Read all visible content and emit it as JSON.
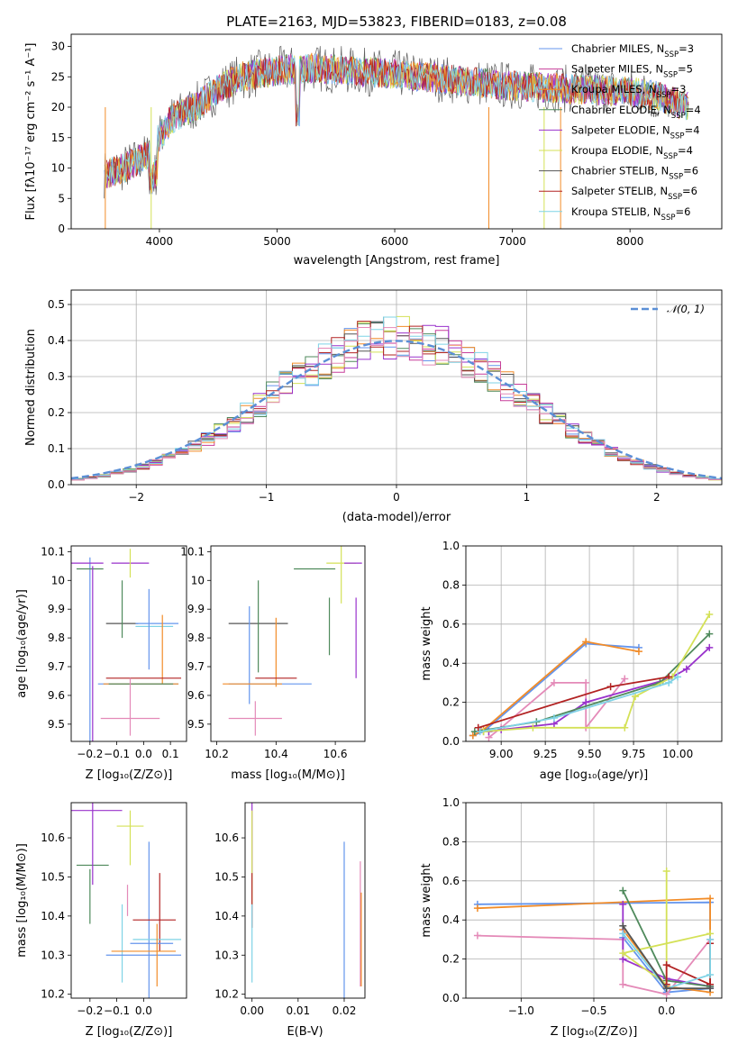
{
  "figure": {
    "title": "PLATE=2163, MJD=53823, FIBERID=0183, z=0.08"
  },
  "chart_data": [
    {
      "id": "spectrum",
      "type": "line",
      "xlabel": "wavelength [Angstrom, rest frame]",
      "ylabel": "Flux [fλ10⁻¹⁷ erg cm⁻² s⁻¹ A⁻¹]",
      "xlim": [
        3250,
        8780
      ],
      "ylim": [
        0,
        32
      ],
      "xticks": [
        4000,
        5000,
        6000,
        7000,
        8000
      ],
      "yticks": [
        0,
        5,
        10,
        15,
        20,
        25,
        30
      ],
      "continuum": {
        "x": [
          3530,
          3700,
          3900,
          4100,
          4300,
          4500,
          4700,
          5000,
          5300,
          5600,
          6000,
          6500,
          7000,
          7500,
          8000,
          8200,
          8500
        ],
        "y": [
          9,
          10,
          12,
          18,
          20,
          23,
          25,
          26,
          26.5,
          26,
          25.5,
          24.5,
          23.5,
          23,
          22.5,
          22,
          20
        ]
      },
      "legend": [
        {
          "label": "Chabrier MILES, N",
          "sub": "SSP",
          "suffix": "=3",
          "color": "#6495ed"
        },
        {
          "label": "Salpeter MILES, N",
          "sub": "SSP",
          "suffix": "=5",
          "color": "#c73e9a"
        },
        {
          "label": "Kroupa MILES, N",
          "sub": "SSP",
          "suffix": "=3",
          "color": "#f28c28"
        },
        {
          "label": "Chabrier ELODIE, N",
          "sub": "SSP",
          "suffix": "=4",
          "color": "#4f8a5c"
        },
        {
          "label": "Salpeter ELODIE, N",
          "sub": "SSP",
          "suffix": "=4",
          "color": "#9932cc"
        },
        {
          "label": "Kroupa ELODIE, N",
          "sub": "SSP",
          "suffix": "=4",
          "color": "#d4e157"
        },
        {
          "label": "Chabrier STELIB, N",
          "sub": "SSP",
          "suffix": "=6",
          "color": "#555555"
        },
        {
          "label": "Salpeter STELIB, N",
          "sub": "SSP",
          "suffix": "=6",
          "color": "#b22222"
        },
        {
          "label": "Kroupa STELIB, N",
          "sub": "SSP",
          "suffix": "=6",
          "color": "#7fd3e6"
        }
      ]
    },
    {
      "id": "residuals",
      "type": "line",
      "xlabel": "(data-model)/error",
      "ylabel": "Normed distribution",
      "xlim": [
        -2.5,
        2.5
      ],
      "ylim": [
        0,
        0.54
      ],
      "xticks": [
        -2,
        -1,
        0,
        1,
        2
      ],
      "yticks": [
        0.0,
        0.1,
        0.2,
        0.3,
        0.4,
        0.5
      ],
      "grid": true,
      "legend_label": "𝒩(0, 1)",
      "legend_placement": "top-right",
      "series_colors": [
        "#6495ed",
        "#c73e9a",
        "#f28c28",
        "#4f8a5c",
        "#9932cc",
        "#d4e157",
        "#555555",
        "#b22222",
        "#7fd3e6",
        "#e48ab8"
      ]
    },
    {
      "id": "age-vs-Z",
      "type": "scatter",
      "xlabel": "Z [log₁₀(Z/Z⊙)]",
      "ylabel": "age  [log₁₀(age/yr)]",
      "xlim": [
        -0.27,
        0.16
      ],
      "ylim": [
        9.44,
        10.12
      ],
      "xticks": [
        -0.2,
        -0.1,
        0.0,
        0.1
      ],
      "xtick_labels": [
        "−0.2",
        "−0.1",
        "0.0",
        "0.1"
      ],
      "yticks": [
        9.5,
        9.6,
        9.7,
        9.8,
        9.9,
        10.0,
        10.1
      ],
      "points": [
        {
          "x": -0.2,
          "y": 9.74,
          "xerr": 0.0,
          "yerr": 0.34,
          "color": "#6495ed"
        },
        {
          "x": -0.21,
          "y": 10.06,
          "xerr": 0.06,
          "yerr": 0.0,
          "color": "#9932cc"
        },
        {
          "x": -0.2,
          "y": 10.04,
          "xerr": 0.05,
          "yerr": 0.0,
          "color": "#4f8a5c"
        },
        {
          "x": -0.19,
          "y": 9.67,
          "xerr": 0.0,
          "yerr": 0.38,
          "color": "#9932cc"
        },
        {
          "x": -0.05,
          "y": 10.06,
          "xerr": 0.07,
          "yerr": 0.0,
          "color": "#9932cc"
        },
        {
          "x": -0.05,
          "y": 10.06,
          "xerr": 0.0,
          "yerr": 0.05,
          "color": "#d4e157"
        },
        {
          "x": -0.08,
          "y": 9.85,
          "xerr": 0.06,
          "yerr": 0.0,
          "color": "#555555"
        },
        {
          "x": -0.08,
          "y": 9.9,
          "xerr": 0.0,
          "yerr": 0.1,
          "color": "#4f8a5c"
        },
        {
          "x": 0.05,
          "y": 9.85,
          "xerr": 0.08,
          "yerr": 0.0,
          "color": "#6495ed"
        },
        {
          "x": 0.04,
          "y": 9.84,
          "xerr": 0.07,
          "yerr": 0.0,
          "color": "#7fd3e6"
        },
        {
          "x": 0.02,
          "y": 9.83,
          "xerr": 0.0,
          "yerr": 0.14,
          "color": "#6495ed"
        },
        {
          "x": 0.07,
          "y": 9.76,
          "xerr": 0.0,
          "yerr": 0.12,
          "color": "#f28c28"
        },
        {
          "x": 0.0,
          "y": 9.66,
          "xerr": 0.14,
          "yerr": 0.0,
          "color": "#b22222"
        },
        {
          "x": -0.02,
          "y": 9.64,
          "xerr": 0.15,
          "yerr": 0.0,
          "color": "#6495ed"
        },
        {
          "x": -0.01,
          "y": 9.64,
          "xerr": 0.14,
          "yerr": 0.0,
          "color": "#f28c28"
        },
        {
          "x": -0.01,
          "y": 9.64,
          "xerr": 0.12,
          "yerr": 0.0,
          "color": "#4f8a5c"
        },
        {
          "x": -0.05,
          "y": 9.52,
          "xerr": 0.11,
          "yerr": 0.0,
          "color": "#e48ab8"
        },
        {
          "x": -0.05,
          "y": 9.56,
          "xerr": 0.0,
          "yerr": 0.1,
          "color": "#e48ab8"
        }
      ]
    },
    {
      "id": "age-vs-mass",
      "type": "scatter",
      "xlabel": "mass [log₁₀(M/M⊙)]",
      "ylabel": "",
      "xlim": [
        10.18,
        10.7
      ],
      "ylim": [
        9.44,
        10.12
      ],
      "xticks": [
        10.2,
        10.4,
        10.6
      ],
      "yticks": [
        9.5,
        9.6,
        9.7,
        9.8,
        9.9,
        10.0,
        10.1
      ],
      "points": [
        {
          "x": 10.62,
          "y": 10.06,
          "xerr": 0.05,
          "yerr": 0.0,
          "color": "#d4e157"
        },
        {
          "x": 10.62,
          "y": 10.06,
          "xerr": 0.0,
          "yerr": 0.14,
          "color": "#d4e157"
        },
        {
          "x": 10.66,
          "y": 10.06,
          "xerr": 0.03,
          "yerr": 0.0,
          "color": "#9932cc"
        },
        {
          "x": 10.67,
          "y": 9.8,
          "xerr": 0.0,
          "yerr": 0.14,
          "color": "#9932cc"
        },
        {
          "x": 10.53,
          "y": 10.04,
          "xerr": 0.07,
          "yerr": 0.0,
          "color": "#4f8a5c"
        },
        {
          "x": 10.58,
          "y": 9.84,
          "xerr": 0.0,
          "yerr": 0.1,
          "color": "#4f8a5c"
        },
        {
          "x": 10.34,
          "y": 9.85,
          "xerr": 0.1,
          "yerr": 0.0,
          "color": "#555555"
        },
        {
          "x": 10.34,
          "y": 9.84,
          "xerr": 0.0,
          "yerr": 0.16,
          "color": "#4f8a5c"
        },
        {
          "x": 10.31,
          "y": 9.74,
          "xerr": 0.0,
          "yerr": 0.17,
          "color": "#6495ed"
        },
        {
          "x": 10.4,
          "y": 9.75,
          "xerr": 0.0,
          "yerr": 0.12,
          "color": "#f28c28"
        },
        {
          "x": 10.4,
          "y": 9.66,
          "xerr": 0.07,
          "yerr": 0.0,
          "color": "#b22222"
        },
        {
          "x": 10.38,
          "y": 9.64,
          "xerr": 0.14,
          "yerr": 0.0,
          "color": "#6495ed"
        },
        {
          "x": 10.32,
          "y": 9.64,
          "xerr": 0.1,
          "yerr": 0.0,
          "color": "#f28c28"
        },
        {
          "x": 10.33,
          "y": 9.52,
          "xerr": 0.09,
          "yerr": 0.0,
          "color": "#e48ab8"
        },
        {
          "x": 10.33,
          "y": 9.52,
          "xerr": 0.0,
          "yerr": 0.06,
          "color": "#e48ab8"
        }
      ]
    },
    {
      "id": "mass-weight-vs-age",
      "type": "line",
      "xlabel": "age  [log₁₀(age/yr)]",
      "ylabel": "mass weight",
      "xlim": [
        8.8,
        10.25
      ],
      "ylim": [
        0,
        1.0
      ],
      "xticks": [
        9.0,
        9.25,
        9.5,
        9.75,
        10.0
      ],
      "xtick_labels": [
        "9.00",
        "9.25",
        "9.50",
        "9.75",
        "10.00"
      ],
      "yticks": [
        0.0,
        0.2,
        0.4,
        0.6,
        0.8,
        1.0
      ],
      "grid": true,
      "series": [
        {
          "color": "#6495ed",
          "x": [
            8.84,
            8.9,
            9.48,
            9.78
          ],
          "y": [
            0.03,
            0.05,
            0.5,
            0.48
          ]
        },
        {
          "color": "#f28c28",
          "x": [
            8.84,
            8.9,
            9.48,
            9.78
          ],
          "y": [
            0.03,
            0.06,
            0.51,
            0.46
          ]
        },
        {
          "color": "#e48ab8",
          "x": [
            8.93,
            9.0,
            9.3,
            9.48,
            9.48,
            9.7
          ],
          "y": [
            0.02,
            0.07,
            0.3,
            0.3,
            0.07,
            0.32
          ]
        },
        {
          "color": "#9932cc",
          "x": [
            8.93,
            9.0,
            9.3,
            9.48,
            9.95,
            10.05,
            10.18
          ],
          "y": [
            0.05,
            0.06,
            0.09,
            0.2,
            0.32,
            0.37,
            0.48
          ]
        },
        {
          "color": "#4f8a5c",
          "x": [
            8.85,
            9.2,
            9.9,
            10.18
          ],
          "y": [
            0.05,
            0.1,
            0.3,
            0.55
          ]
        },
        {
          "color": "#d4e157",
          "x": [
            8.9,
            9.18,
            9.7,
            9.76,
            9.97,
            10.18
          ],
          "y": [
            0.05,
            0.07,
            0.07,
            0.23,
            0.33,
            0.65
          ]
        },
        {
          "color": "#b22222",
          "x": [
            8.87,
            9.62,
            9.95
          ],
          "y": [
            0.07,
            0.28,
            0.33
          ]
        },
        {
          "color": "#7fd3e6",
          "x": [
            8.88,
            9.3,
            9.95,
            10.0
          ],
          "y": [
            0.05,
            0.12,
            0.3,
            0.33
          ]
        }
      ]
    },
    {
      "id": "mass-vs-Z",
      "type": "scatter",
      "xlabel": "Z [log₁₀(Z/Z⊙)]",
      "ylabel": "mass [log₁₀(M/M⊙)]",
      "xlim": [
        -0.27,
        0.16
      ],
      "ylim": [
        10.19,
        10.69
      ],
      "xticks": [
        -0.2,
        -0.1,
        0.0
      ],
      "xtick_labels": [
        "−0.2",
        "−0.1",
        "0.0"
      ],
      "yticks": [
        10.2,
        10.3,
        10.4,
        10.5,
        10.6
      ],
      "points": [
        {
          "x": -0.21,
          "y": 10.67,
          "xerr": 0.13,
          "yerr": 0.0,
          "color": "#9932cc"
        },
        {
          "x": -0.19,
          "y": 10.53,
          "xerr": 0.06,
          "yerr": 0.0,
          "color": "#4f8a5c"
        },
        {
          "x": -0.2,
          "y": 10.45,
          "xerr": 0.0,
          "yerr": 0.07,
          "color": "#4f8a5c"
        },
        {
          "x": -0.19,
          "y": 10.59,
          "xerr": 0.0,
          "yerr": 0.11,
          "color": "#9932cc"
        },
        {
          "x": -0.05,
          "y": 10.63,
          "xerr": 0.05,
          "yerr": 0.0,
          "color": "#d4e157"
        },
        {
          "x": -0.05,
          "y": 10.6,
          "xerr": 0.0,
          "yerr": 0.07,
          "color": "#d4e157"
        },
        {
          "x": -0.08,
          "y": 10.33,
          "xerr": 0.0,
          "yerr": 0.1,
          "color": "#7fd3e6"
        },
        {
          "x": -0.06,
          "y": 10.44,
          "xerr": 0.0,
          "yerr": 0.04,
          "color": "#e48ab8"
        },
        {
          "x": 0.02,
          "y": 10.39,
          "xerr": 0.0,
          "yerr": 0.2,
          "color": "#6495ed"
        },
        {
          "x": 0.04,
          "y": 10.39,
          "xerr": 0.08,
          "yerr": 0.0,
          "color": "#b22222"
        },
        {
          "x": 0.06,
          "y": 10.41,
          "xerr": 0.0,
          "yerr": 0.1,
          "color": "#b22222"
        },
        {
          "x": 0.05,
          "y": 10.34,
          "xerr": 0.09,
          "yerr": 0.0,
          "color": "#7fd3e6"
        },
        {
          "x": 0.03,
          "y": 10.33,
          "xerr": 0.08,
          "yerr": 0.0,
          "color": "#6495ed"
        },
        {
          "x": 0.0,
          "y": 10.31,
          "xerr": 0.12,
          "yerr": 0.0,
          "color": "#f28c28"
        },
        {
          "x": 0.0,
          "y": 10.3,
          "xerr": 0.14,
          "yerr": 0.0,
          "color": "#6495ed"
        },
        {
          "x": 0.05,
          "y": 10.3,
          "xerr": 0.0,
          "yerr": 0.08,
          "color": "#f28c28"
        }
      ]
    },
    {
      "id": "mass-vs-EBV",
      "type": "scatter",
      "xlabel": "E(B-V)",
      "ylabel": "",
      "xlim": [
        -0.0015,
        0.0245
      ],
      "ylim": [
        10.19,
        10.69
      ],
      "xticks": [
        0.0,
        0.01,
        0.02
      ],
      "xtick_labels": [
        "0.00",
        "0.01",
        "0.02"
      ],
      "yticks": [
        10.2,
        10.3,
        10.4,
        10.5,
        10.6
      ],
      "points": [
        {
          "x": 0.0,
          "y": 10.6,
          "yerr": 0.09,
          "color": "#9932cc"
        },
        {
          "x": 0.0,
          "y": 10.55,
          "yerr": 0.12,
          "color": "#d4e157"
        },
        {
          "x": 0.0,
          "y": 10.44,
          "yerr": 0.07,
          "color": "#b22222"
        },
        {
          "x": 0.0,
          "y": 10.33,
          "yerr": 0.1,
          "color": "#7fd3e6"
        },
        {
          "x": 0.02,
          "y": 10.39,
          "yerr": 0.2,
          "color": "#6495ed"
        },
        {
          "x": 0.0235,
          "y": 10.38,
          "yerr": 0.16,
          "color": "#e48ab8"
        },
        {
          "x": 0.0237,
          "y": 10.34,
          "yerr": 0.12,
          "color": "#f28c28"
        }
      ]
    },
    {
      "id": "mass-weight-vs-Z",
      "type": "line",
      "xlabel": "Z [log₁₀(Z/Z⊙)]",
      "ylabel": "mass weight",
      "xlim": [
        -1.38,
        0.38
      ],
      "ylim": [
        0,
        1.0
      ],
      "xticks": [
        -1.0,
        -0.5,
        0.0
      ],
      "xtick_labels": [
        "−1.0",
        "−0.5",
        "0.0"
      ],
      "yticks": [
        0.0,
        0.2,
        0.4,
        0.6,
        0.8,
        1.0
      ],
      "grid": true,
      "series": [
        {
          "color": "#6495ed",
          "x": [
            -1.3,
            0.3,
            0.3,
            0.0,
            -0.3
          ],
          "y": [
            0.48,
            0.49,
            0.05,
            0.03,
            0.31
          ]
        },
        {
          "color": "#f28c28",
          "x": [
            -1.3,
            0.3,
            0.3,
            0.0,
            -0.3
          ],
          "y": [
            0.46,
            0.51,
            0.03,
            0.06,
            0.35
          ]
        },
        {
          "color": "#e48ab8",
          "x": [
            -1.3,
            -0.3,
            -0.3,
            0.0,
            0.3
          ],
          "y": [
            0.32,
            0.3,
            0.07,
            0.02,
            0.3
          ]
        },
        {
          "color": "#9932cc",
          "x": [
            -0.3,
            -0.3,
            0.0,
            0.3
          ],
          "y": [
            0.48,
            0.2,
            0.1,
            0.06
          ]
        },
        {
          "color": "#4f8a5c",
          "x": [
            -0.3,
            0.0,
            0.3
          ],
          "y": [
            0.55,
            0.09,
            0.06
          ]
        },
        {
          "color": "#d4e157",
          "x": [
            0.0,
            0.0,
            -0.3,
            0.3
          ],
          "y": [
            0.65,
            0.07,
            0.23,
            0.33
          ]
        },
        {
          "color": "#b22222",
          "x": [
            0.0,
            0.0,
            0.3,
            0.3
          ],
          "y": [
            0.07,
            0.17,
            0.07,
            0.28
          ]
        },
        {
          "color": "#7fd3e6",
          "x": [
            -0.3,
            0.0,
            0.3,
            0.3
          ],
          "y": [
            0.33,
            0.05,
            0.12,
            0.3
          ]
        },
        {
          "color": "#555555",
          "x": [
            -0.3,
            0.0,
            0.3
          ],
          "y": [
            0.37,
            0.05,
            0.05
          ]
        }
      ]
    }
  ]
}
